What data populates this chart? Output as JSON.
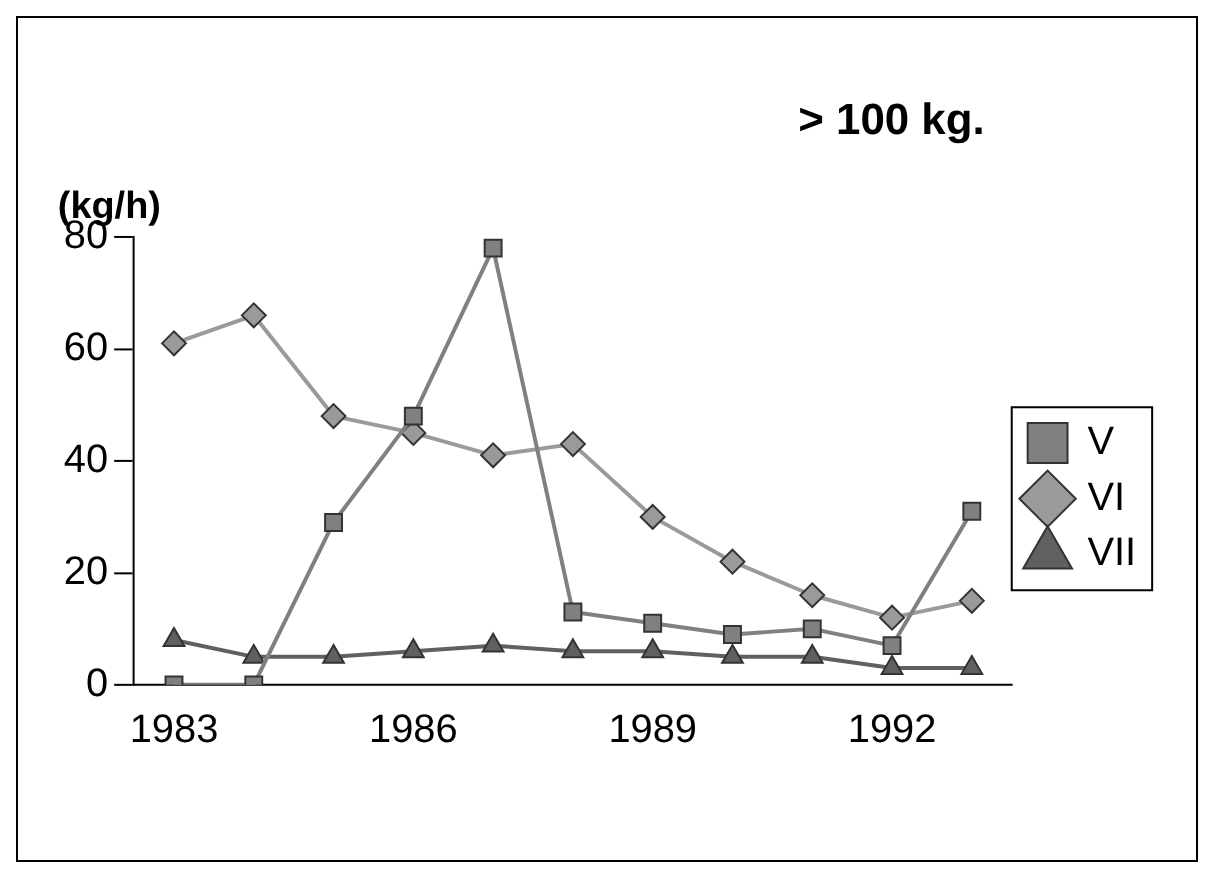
{
  "chart_data": {
    "type": "line",
    "title": "> 100 kg.",
    "ylabel": "(kg/h)",
    "categories": [
      "1983",
      null,
      null,
      "1986",
      null,
      null,
      "1989",
      null,
      null,
      "1992",
      null
    ],
    "series": [
      {
        "name": "V",
        "color": "#808080",
        "marker": "square",
        "values": [
          0,
          0,
          29,
          48,
          78,
          13,
          11,
          9,
          10,
          7,
          31
        ]
      },
      {
        "name": "VI",
        "color": "#9a9a9a",
        "marker": "diamond",
        "values": [
          61,
          66,
          48,
          45,
          41,
          43,
          30,
          22,
          16,
          12,
          15
        ]
      },
      {
        "name": "VII",
        "color": "#606060",
        "marker": "triangle",
        "values": [
          8,
          5,
          5,
          6,
          7,
          6,
          6,
          5,
          5,
          3,
          3
        ]
      }
    ],
    "ylim": [
      0,
      80
    ],
    "yticks": [
      0,
      20,
      40,
      60,
      80
    ],
    "grid": false,
    "legend": "right",
    "line_style": "solid"
  }
}
